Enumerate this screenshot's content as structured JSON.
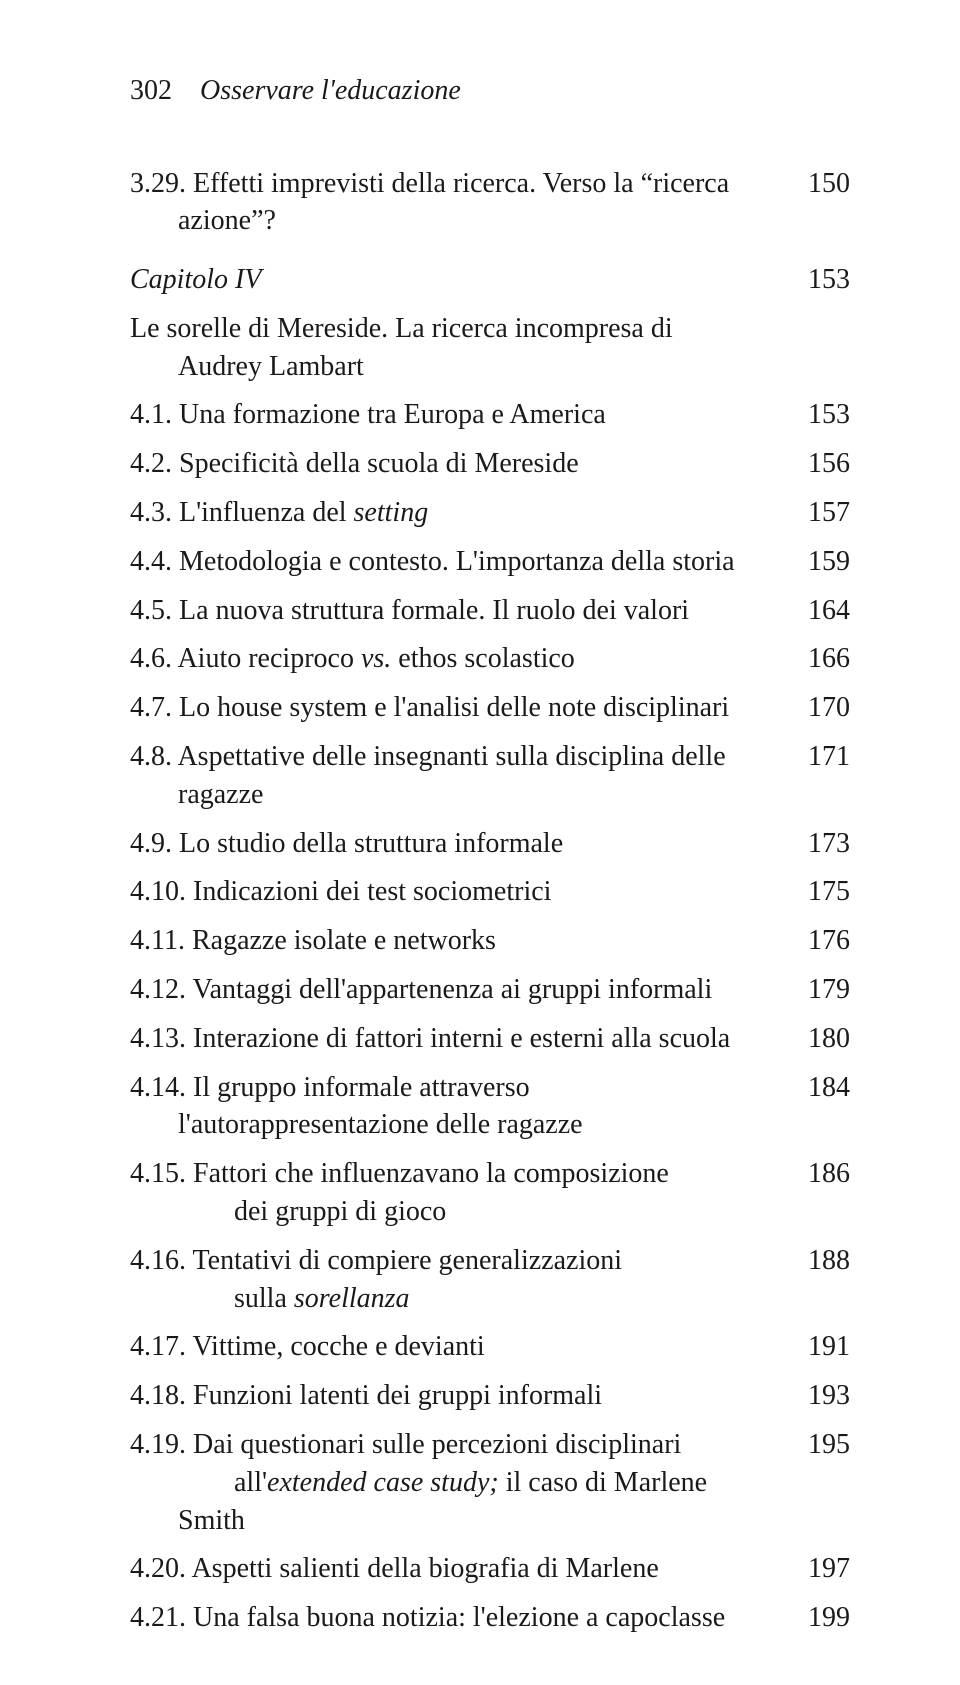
{
  "header": {
    "page_number": "302",
    "running_head": "Osservare l'educazione"
  },
  "toc": [
    {
      "label_html": "3.29. Effetti imprevisti della ricerca. Verso la “ricerca azione”?",
      "page": "150"
    },
    {
      "label_html": "<span class=\"italic\">Capitolo IV</span>",
      "page": "153",
      "chapter": true
    },
    {
      "label_html": "Le sorelle di Mereside. La ricerca incompresa di Audrey Lambart",
      "page": ""
    },
    {
      "label_html": "4.1. Una formazione tra Europa e America",
      "page": "153"
    },
    {
      "label_html": "4.2. Specificità della scuola di Mereside",
      "page": "156"
    },
    {
      "label_html": "4.3. L'influenza del <span class=\"italic\">setting</span>",
      "page": "157"
    },
    {
      "label_html": "4.4. Metodologia e contesto. L'importanza della storia",
      "page": "159"
    },
    {
      "label_html": "4.5. La nuova struttura formale. Il ruolo dei valori",
      "page": "164"
    },
    {
      "label_html": "4.6. Aiuto reciproco <span class=\"italic\">vs.</span> ethos scolastico",
      "page": "166"
    },
    {
      "label_html": "4.7. Lo house system e l'analisi delle note disciplinari",
      "page": "170"
    },
    {
      "label_html": "4.8. Aspettative delle insegnanti sulla disciplina delle ragazze",
      "page": "171"
    },
    {
      "label_html": "4.9. Lo studio della struttura informale",
      "page": "173"
    },
    {
      "label_html": "4.10. Indicazioni dei test sociometrici",
      "page": "175"
    },
    {
      "label_html": "4.11. Ragazze isolate e networks",
      "page": "176"
    },
    {
      "label_html": "4.12. Vantaggi dell'appartenenza ai gruppi informali",
      "page": "179"
    },
    {
      "label_html": "4.13. Interazione di fattori interni e esterni alla scuola",
      "page": "180"
    },
    {
      "label_html": "4.14. Il gruppo informale attraverso l'autorappresentazione delle ragazze",
      "page": "184"
    },
    {
      "label_html": "4.15. Fattori che influenzavano la composizione<br>&nbsp;&nbsp;&nbsp;&nbsp;&nbsp;&nbsp;&nbsp;&nbsp;dei gruppi di gioco",
      "page": "186"
    },
    {
      "label_html": "4.16. Tentativi di compiere generalizzazioni<br>&nbsp;&nbsp;&nbsp;&nbsp;&nbsp;&nbsp;&nbsp;&nbsp;sulla <span class=\"italic\">sorellanza</span>",
      "page": "188"
    },
    {
      "label_html": "4.17. Vittime, cocche e devianti",
      "page": "191"
    },
    {
      "label_html": "4.18. Funzioni latenti dei gruppi informali",
      "page": "193"
    },
    {
      "label_html": "4.19. Dai questionari sulle percezioni disciplinari<br>&nbsp;&nbsp;&nbsp;&nbsp;&nbsp;&nbsp;&nbsp;&nbsp;all'<span class=\"italic\">extended case study;</span> il caso di Marlene Smith",
      "page": "195"
    },
    {
      "label_html": "4.20. Aspetti salienti della biografia di Marlene",
      "page": "197"
    },
    {
      "label_html": "4.21. Una falsa buona notizia: l'elezione a capoclasse",
      "page": "199"
    }
  ]
}
